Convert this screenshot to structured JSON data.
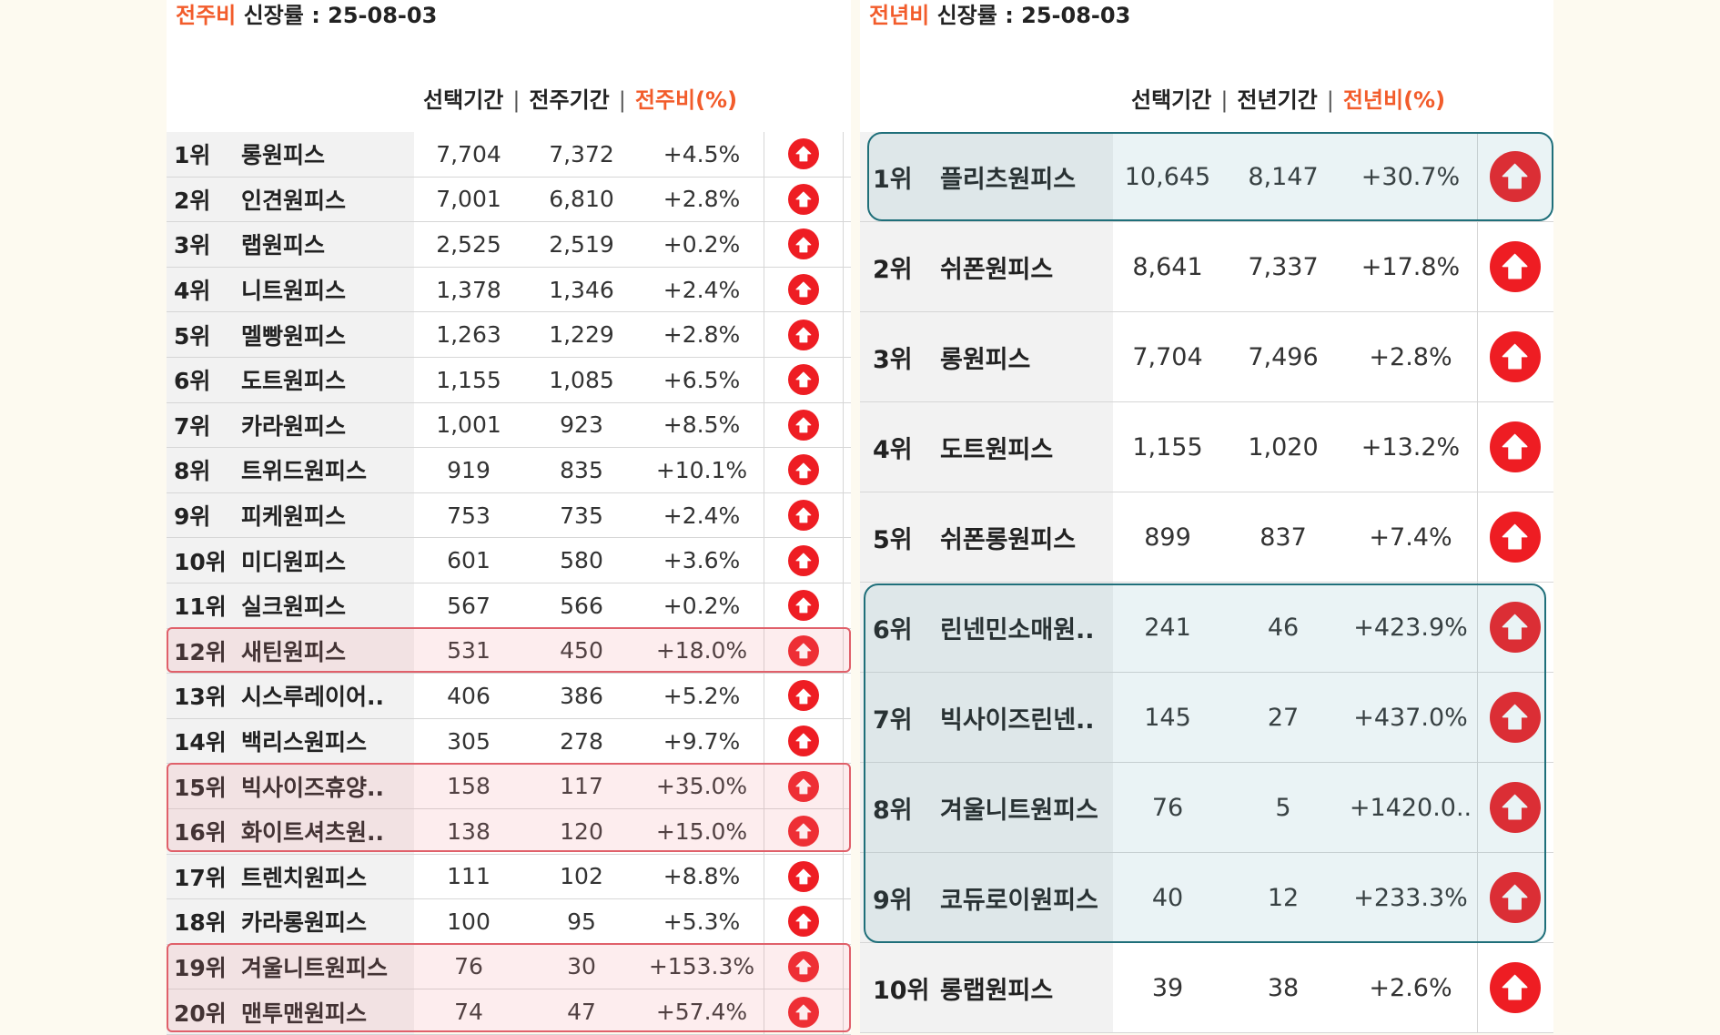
{
  "left": {
    "title_highlight": "전주비",
    "title_rest": " 신장률  : 25-08-03",
    "columns": [
      "선택기간",
      "전주기간",
      "전주비(%)"
    ],
    "separator": "|",
    "rows": [
      {
        "rank": "1위",
        "name": "롱원피스",
        "selected": "7,704",
        "prev": "7,372",
        "ratio": "+4.5%"
      },
      {
        "rank": "2위",
        "name": "인견원피스",
        "selected": "7,001",
        "prev": "6,810",
        "ratio": "+2.8%"
      },
      {
        "rank": "3위",
        "name": "랩원피스",
        "selected": "2,525",
        "prev": "2,519",
        "ratio": "+0.2%"
      },
      {
        "rank": "4위",
        "name": "니트원피스",
        "selected": "1,378",
        "prev": "1,346",
        "ratio": "+2.4%"
      },
      {
        "rank": "5위",
        "name": "멜빵원피스",
        "selected": "1,263",
        "prev": "1,229",
        "ratio": "+2.8%"
      },
      {
        "rank": "6위",
        "name": "도트원피스",
        "selected": "1,155",
        "prev": "1,085",
        "ratio": "+6.5%"
      },
      {
        "rank": "7위",
        "name": "카라원피스",
        "selected": "1,001",
        "prev": "923",
        "ratio": "+8.5%"
      },
      {
        "rank": "8위",
        "name": "트위드원피스",
        "selected": "919",
        "prev": "835",
        "ratio": "+10.1%"
      },
      {
        "rank": "9위",
        "name": "피케원피스",
        "selected": "753",
        "prev": "735",
        "ratio": "+2.4%"
      },
      {
        "rank": "10위",
        "name": "미디원피스",
        "selected": "601",
        "prev": "580",
        "ratio": "+3.6%"
      },
      {
        "rank": "11위",
        "name": "실크원피스",
        "selected": "567",
        "prev": "566",
        "ratio": "+0.2%"
      },
      {
        "rank": "12위",
        "name": "새틴원피스",
        "selected": "531",
        "prev": "450",
        "ratio": "+18.0%"
      },
      {
        "rank": "13위",
        "name": "시스루레이어..",
        "selected": "406",
        "prev": "386",
        "ratio": "+5.2%"
      },
      {
        "rank": "14위",
        "name": "백리스원피스",
        "selected": "305",
        "prev": "278",
        "ratio": "+9.7%"
      },
      {
        "rank": "15위",
        "name": "빅사이즈휴양..",
        "selected": "158",
        "prev": "117",
        "ratio": "+35.0%"
      },
      {
        "rank": "16위",
        "name": "화이트셔츠원..",
        "selected": "138",
        "prev": "120",
        "ratio": "+15.0%"
      },
      {
        "rank": "17위",
        "name": "트렌치원피스",
        "selected": "111",
        "prev": "102",
        "ratio": "+8.8%"
      },
      {
        "rank": "18위",
        "name": "카라롱원피스",
        "selected": "100",
        "prev": "95",
        "ratio": "+5.3%"
      },
      {
        "rank": "19위",
        "name": "겨울니트원피스",
        "selected": "76",
        "prev": "30",
        "ratio": "+153.3%"
      },
      {
        "rank": "20위",
        "name": "맨투맨원피스",
        "selected": "74",
        "prev": "47",
        "ratio": "+57.4%"
      }
    ]
  },
  "right": {
    "title_highlight": "전년비",
    "title_rest": " 신장률 : 25-08-03",
    "columns": [
      "선택기간",
      "전년기간",
      "전년비(%)"
    ],
    "separator": "|",
    "rows": [
      {
        "rank": "1위",
        "name": "플리츠원피스",
        "selected": "10,645",
        "prev": "8,147",
        "ratio": "+30.7%"
      },
      {
        "rank": "2위",
        "name": "쉬폰원피스",
        "selected": "8,641",
        "prev": "7,337",
        "ratio": "+17.8%"
      },
      {
        "rank": "3위",
        "name": "롱원피스",
        "selected": "7,704",
        "prev": "7,496",
        "ratio": "+2.8%"
      },
      {
        "rank": "4위",
        "name": "도트원피스",
        "selected": "1,155",
        "prev": "1,020",
        "ratio": "+13.2%"
      },
      {
        "rank": "5위",
        "name": "쉬폰롱원피스",
        "selected": "899",
        "prev": "837",
        "ratio": "+7.4%"
      },
      {
        "rank": "6위",
        "name": "린넨민소매원..",
        "selected": "241",
        "prev": "46",
        "ratio": "+423.9%"
      },
      {
        "rank": "7위",
        "name": "빅사이즈린넨..",
        "selected": "145",
        "prev": "27",
        "ratio": "+437.0%"
      },
      {
        "rank": "8위",
        "name": "겨울니트원피스",
        "selected": "76",
        "prev": "5",
        "ratio": "+1420.0.."
      },
      {
        "rank": "9위",
        "name": "코듀로이원피스",
        "selected": "40",
        "prev": "12",
        "ratio": "+233.3%"
      },
      {
        "rank": "10위",
        "name": "롱랩원피스",
        "selected": "39",
        "prev": "38",
        "ratio": "+2.6%"
      }
    ]
  },
  "icon": "arrow-up-circle-icon",
  "colors": {
    "accent": "#f25c2b",
    "arrow": "#ee1d23",
    "highlight_red": "#e0606a",
    "highlight_teal": "#1f6f7a"
  }
}
